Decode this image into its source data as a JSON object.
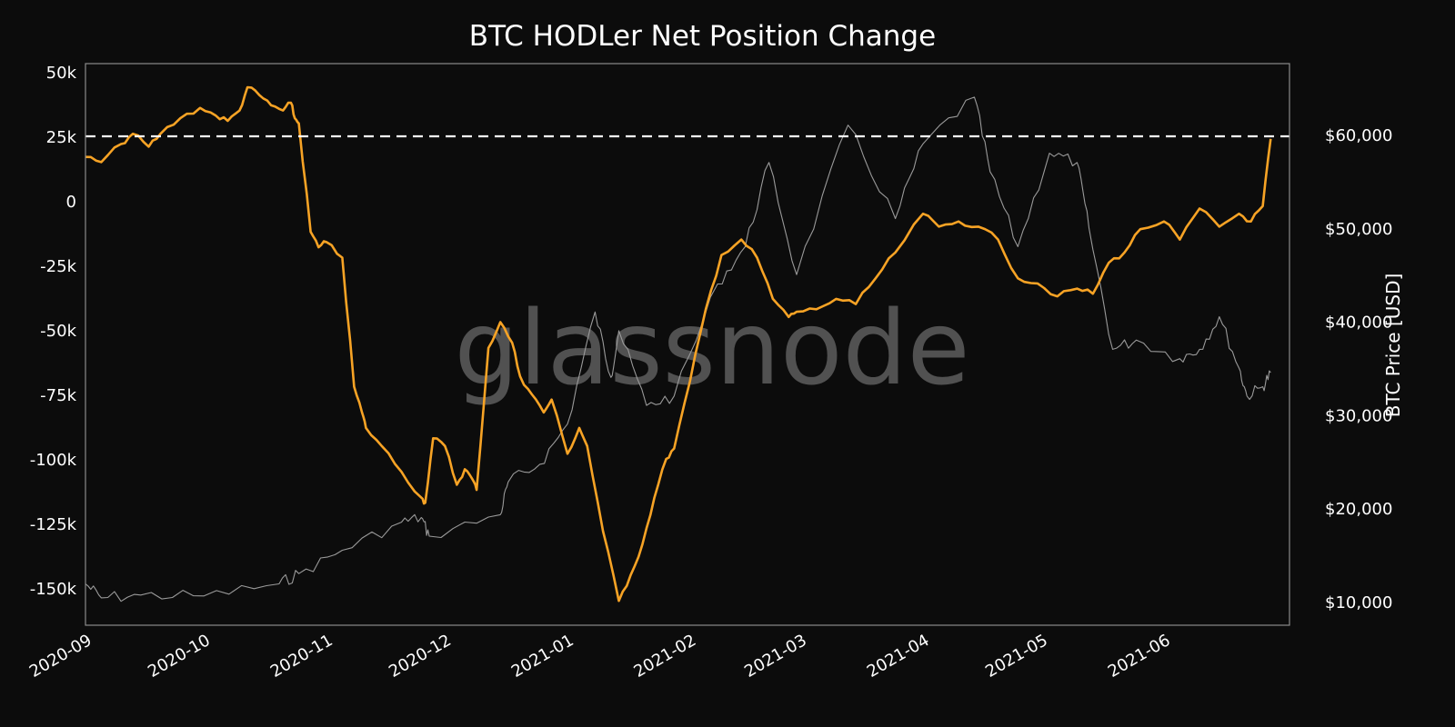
{
  "chart_data": {
    "type": "line",
    "title": "BTC HODLer Net Position Change",
    "watermark": "glassnode",
    "xlabel": "",
    "ylabel_left": "",
    "ylabel_right": "BTC Price [USD]",
    "x_ticks": [
      "2020-09",
      "2020-10",
      "2020-11",
      "2020-12",
      "2021-01",
      "2021-02",
      "2021-03",
      "2021-04",
      "2021-05",
      "2021-06"
    ],
    "y_left_ticks": [
      "50k",
      "25k",
      "0",
      "-25k",
      "-50k",
      "-75k",
      "-100k",
      "-125k",
      "-150k"
    ],
    "y_left_range": [
      -163000,
      53000
    ],
    "y_right_ticks": [
      "$60,000",
      "$50,000",
      "$40,000",
      "$30,000",
      "$20,000",
      "$10,000"
    ],
    "y_right_range": [
      7500,
      65500
    ],
    "grid": false,
    "reference_line": {
      "axis": "left",
      "value": 25000,
      "style": "dashed",
      "color": "#ffffff"
    },
    "colors": {
      "background": "#0c0c0c",
      "net_position": "#f7a325",
      "price": "#9a9a9a",
      "frame": "#8c8c8c"
    },
    "series": [
      {
        "name": "HODLer Net Position Change",
        "axis": "left",
        "color": "#f7a325",
        "x": [
          "2020-09-01",
          "2020-09-05",
          "2020-09-10",
          "2020-09-13",
          "2020-09-17",
          "2020-09-20",
          "2020-09-25",
          "2020-09-30",
          "2020-10-04",
          "2020-10-07",
          "2020-10-10",
          "2020-10-12",
          "2020-10-15",
          "2020-10-18",
          "2020-10-21",
          "2020-10-23",
          "2020-10-24",
          "2020-10-25",
          "2020-10-28",
          "2020-10-30",
          "2020-11-01",
          "2020-11-05",
          "2020-11-08",
          "2020-11-10",
          "2020-11-11",
          "2020-11-15",
          "2020-11-20",
          "2020-11-25",
          "2020-11-26",
          "2020-11-28",
          "2020-12-01",
          "2020-12-04",
          "2020-12-06",
          "2020-12-08",
          "2020-12-09",
          "2020-12-12",
          "2020-12-15",
          "2020-12-18",
          "2020-12-20",
          "2020-12-23",
          "2020-12-26",
          "2020-12-28",
          "2021-01-01",
          "2021-01-04",
          "2021-01-06",
          "2021-01-10",
          "2021-01-14",
          "2021-01-17",
          "2021-01-20",
          "2021-01-23",
          "2021-01-26",
          "2021-01-28",
          "2021-02-01",
          "2021-02-05",
          "2021-02-09",
          "2021-02-14",
          "2021-02-18",
          "2021-02-22",
          "2021-02-26",
          "2021-02-28",
          "2021-03-05",
          "2021-03-10",
          "2021-03-15",
          "2021-03-20",
          "2021-03-25",
          "2021-04-01",
          "2021-04-05",
          "2021-04-10",
          "2021-04-15",
          "2021-04-20",
          "2021-04-25",
          "2021-04-30",
          "2021-05-05",
          "2021-05-10",
          "2021-05-14",
          "2021-05-18",
          "2021-05-22",
          "2021-05-26",
          "2021-06-01",
          "2021-06-05",
          "2021-06-10",
          "2021-06-15",
          "2021-06-20",
          "2021-06-23",
          "2021-06-26",
          "2021-06-28"
        ],
        "values": [
          17000,
          15000,
          22000,
          26000,
          21000,
          26000,
          32000,
          36000,
          33000,
          31000,
          35000,
          44000,
          41000,
          37000,
          35000,
          38000,
          32000,
          30000,
          -12000,
          -18000,
          -16000,
          -22000,
          -72000,
          -82000,
          -88000,
          -95000,
          -105000,
          -115000,
          -117000,
          -92000,
          -95000,
          -110000,
          -104000,
          -108000,
          -112000,
          -57000,
          -47000,
          -55000,
          -68000,
          -75000,
          -82000,
          -77000,
          -98000,
          -88000,
          -95000,
          -128000,
          -155000,
          -145000,
          -133000,
          -115000,
          -100000,
          -96000,
          -70000,
          -42000,
          -21000,
          -15000,
          -22000,
          -38000,
          -45000,
          -43000,
          -42000,
          -38000,
          -40000,
          -30000,
          -20000,
          -5000,
          -10000,
          -8000,
          -10000,
          -15000,
          -30000,
          -32000,
          -37000,
          -34000,
          -36000,
          -24000,
          -20000,
          -11000,
          -8000,
          -15000,
          -3000,
          -10000,
          -5000,
          -8000,
          -2000,
          24000
        ]
      },
      {
        "name": "BTC Price",
        "axis": "right",
        "unit": "USD",
        "color": "#9a9a9a",
        "x": [
          "2020-09-01",
          "2020-09-05",
          "2020-09-15",
          "2020-10-01",
          "2020-10-20",
          "2020-10-25",
          "2020-11-05",
          "2020-11-20",
          "2020-11-25",
          "2020-11-27",
          "2020-12-15",
          "2020-12-17",
          "2020-12-25",
          "2021-01-01",
          "2021-01-08",
          "2021-01-12",
          "2021-01-14",
          "2021-01-21",
          "2021-01-28",
          "2021-02-08",
          "2021-02-15",
          "2021-02-21",
          "2021-02-28",
          "2021-03-13",
          "2021-03-25",
          "2021-04-01",
          "2021-04-14",
          "2021-04-18",
          "2021-04-25",
          "2021-05-03",
          "2021-05-10",
          "2021-05-13",
          "2021-05-19",
          "2021-05-25",
          "2021-06-05",
          "2021-06-10",
          "2021-06-15",
          "2021-06-20",
          "2021-06-22",
          "2021-06-26",
          "2021-06-28"
        ],
        "values": [
          11900,
          10400,
          10700,
          10600,
          11900,
          13000,
          15500,
          18500,
          19000,
          17000,
          19300,
          22800,
          24700,
          29000,
          41000,
          34000,
          39000,
          31000,
          32000,
          44000,
          48000,
          57000,
          45000,
          61000,
          51000,
          59000,
          64000,
          56000,
          48000,
          58000,
          57000,
          50000,
          37000,
          38000,
          36000,
          37000,
          40500,
          35000,
          32000,
          33000,
          34500
        ]
      }
    ]
  }
}
